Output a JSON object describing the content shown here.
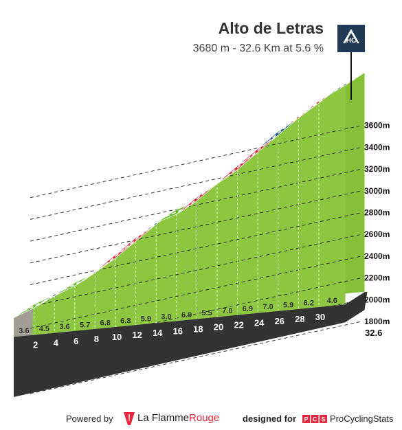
{
  "header": {
    "title": "Alto de Letras",
    "subtitle": "3680 m - 32.6 Km at 5.6 %"
  },
  "category_badge": {
    "label": "HC",
    "icon": "mountain-icon"
  },
  "footer": {
    "powered_label": "Powered by",
    "lfr_name_part1": "La Flamme",
    "lfr_name_part2": "Rouge",
    "designed_label": "designed for",
    "pcs_name": "ProCyclingStats"
  },
  "chart_data": {
    "type": "area",
    "title": "Alto de Letras",
    "subtitle": "3680 m - 32.6 Km at 5.6 %",
    "x_unit": "km",
    "y_unit": "m",
    "ylim": [
      1800,
      3600
    ],
    "yticks": [
      1800,
      2000,
      2200,
      2400,
      2600,
      2800,
      3000,
      3200,
      3400,
      3600
    ],
    "ytick_labels": [
      "1800m",
      "2000m",
      "2200m",
      "2400m",
      "2600m",
      "2800m",
      "3000m",
      "3200m",
      "3400m",
      "3600m"
    ],
    "xticks": [
      2,
      4,
      6,
      8,
      10,
      12,
      14,
      16,
      18,
      20,
      22,
      24,
      26,
      28,
      30
    ],
    "total_distance_label": "32.6",
    "segment_length_km": 2,
    "gradients": [
      3.6,
      4.5,
      3.6,
      5.7,
      6.8,
      6.8,
      5.9,
      3.0,
      6.9,
      5.5,
      7.0,
      6.9,
      7.0,
      5.9,
      6.2,
      4.6
    ],
    "gradient_labels": [
      "3.6",
      "4.5",
      "3.6",
      "5.7",
      "6.8",
      "6.8",
      "5.9",
      "3.0",
      "6.9",
      "5.5",
      "7.0",
      "6.9",
      "7.0",
      "5.9",
      "6.2",
      "4.6"
    ],
    "top_strip_colors": [
      "#66bb2a",
      "#1f5c85",
      "#66bb2a",
      "#1f5c85",
      "#e0233b",
      "#e0233b",
      "#1f5c85",
      "#66bb2a",
      "#e0233b",
      "#1f5c85",
      "#e0233b",
      "#e0233b",
      "#1f5c85",
      "#e0233b",
      "#e0233b",
      "#1f5c85"
    ],
    "summit_altitude_m": 3680,
    "grid": true,
    "colors": {
      "fill": "#8dc63f",
      "fill_dark": "#6aa52a",
      "base_band": "#333333",
      "grey_side": "#a39e95",
      "green_strip": "#66bb2a",
      "blue_strip": "#1f5c85",
      "red_strip": "#e0233b",
      "badge": "#1f3a52"
    }
  }
}
